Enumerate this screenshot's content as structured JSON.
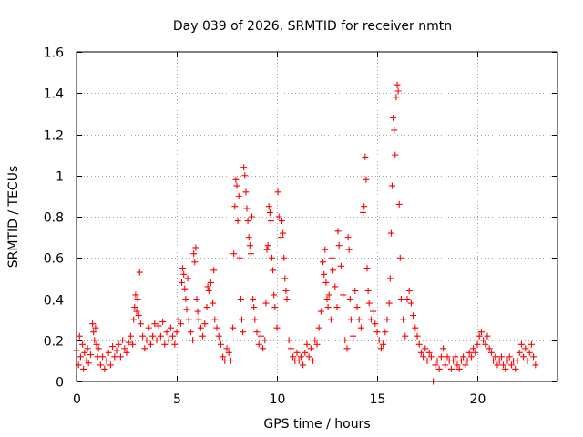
{
  "chart_data": {
    "type": "scatter",
    "title": "Day 039 of 2026, SRMTID for receiver nmtn",
    "xlabel": "GPS time / hours",
    "ylabel": "SRMTID / TECUs",
    "xlim": [
      0,
      24
    ],
    "ylim": [
      0,
      1.6
    ],
    "xticks": [
      0,
      5,
      10,
      15,
      20
    ],
    "xtick_labels": [
      "0",
      "5",
      "10",
      "15",
      "20"
    ],
    "yticks": [
      0,
      0.2,
      0.4,
      0.6,
      0.8,
      1.0,
      1.2,
      1.4,
      1.6
    ],
    "ytick_labels": [
      "0",
      "0.2",
      "0.4",
      "0.6",
      "0.8",
      "1",
      "1.2",
      "1.4",
      "1.6"
    ],
    "grid": true,
    "marker": "plus",
    "color": "#ff0000",
    "series": [
      {
        "name": "SRMTID",
        "points": [
          [
            0.0,
            0.15
          ],
          [
            0.1,
            0.08
          ],
          [
            0.15,
            0.22
          ],
          [
            0.2,
            0.12
          ],
          [
            0.3,
            0.18
          ],
          [
            0.35,
            0.06
          ],
          [
            0.4,
            0.14
          ],
          [
            0.5,
            0.1
          ],
          [
            0.55,
            0.16
          ],
          [
            0.6,
            0.09
          ],
          [
            0.7,
            0.13
          ],
          [
            0.8,
            0.28
          ],
          [
            0.85,
            0.24
          ],
          [
            0.9,
            0.2
          ],
          [
            0.95,
            0.26
          ],
          [
            1.0,
            0.18
          ],
          [
            1.05,
            0.12
          ],
          [
            1.1,
            0.16
          ],
          [
            1.2,
            0.08
          ],
          [
            1.3,
            0.12
          ],
          [
            1.4,
            0.06
          ],
          [
            1.5,
            0.1
          ],
          [
            1.6,
            0.14
          ],
          [
            1.7,
            0.08
          ],
          [
            1.8,
            0.17
          ],
          [
            1.9,
            0.12
          ],
          [
            2.0,
            0.15
          ],
          [
            2.1,
            0.18
          ],
          [
            2.2,
            0.12
          ],
          [
            2.3,
            0.2
          ],
          [
            2.4,
            0.16
          ],
          [
            2.5,
            0.14
          ],
          [
            2.6,
            0.19
          ],
          [
            2.7,
            0.22
          ],
          [
            2.8,
            0.18
          ],
          [
            2.85,
            0.3
          ],
          [
            2.9,
            0.36
          ],
          [
            2.95,
            0.42
          ],
          [
            3.0,
            0.34
          ],
          [
            3.05,
            0.4
          ],
          [
            3.1,
            0.32
          ],
          [
            3.15,
            0.53
          ],
          [
            3.2,
            0.28
          ],
          [
            3.3,
            0.22
          ],
          [
            3.4,
            0.16
          ],
          [
            3.5,
            0.2
          ],
          [
            3.6,
            0.26
          ],
          [
            3.7,
            0.18
          ],
          [
            3.8,
            0.22
          ],
          [
            3.9,
            0.28
          ],
          [
            4.0,
            0.2
          ],
          [
            4.1,
            0.27
          ],
          [
            4.2,
            0.22
          ],
          [
            4.3,
            0.29
          ],
          [
            4.4,
            0.18
          ],
          [
            4.5,
            0.24
          ],
          [
            4.6,
            0.2
          ],
          [
            4.7,
            0.26
          ],
          [
            4.8,
            0.22
          ],
          [
            4.9,
            0.18
          ],
          [
            5.0,
            0.24
          ],
          [
            5.1,
            0.3
          ],
          [
            5.2,
            0.28
          ],
          [
            5.25,
            0.48
          ],
          [
            5.3,
            0.55
          ],
          [
            5.35,
            0.52
          ],
          [
            5.4,
            0.45
          ],
          [
            5.45,
            0.4
          ],
          [
            5.5,
            0.35
          ],
          [
            5.55,
            0.5
          ],
          [
            5.6,
            0.3
          ],
          [
            5.7,
            0.24
          ],
          [
            5.8,
            0.2
          ],
          [
            5.85,
            0.62
          ],
          [
            5.9,
            0.58
          ],
          [
            5.95,
            0.65
          ],
          [
            6.0,
            0.4
          ],
          [
            6.05,
            0.34
          ],
          [
            6.1,
            0.3
          ],
          [
            6.2,
            0.26
          ],
          [
            6.3,
            0.22
          ],
          [
            6.4,
            0.28
          ],
          [
            6.5,
            0.36
          ],
          [
            6.55,
            0.46
          ],
          [
            6.6,
            0.44
          ],
          [
            6.7,
            0.48
          ],
          [
            6.8,
            0.38
          ],
          [
            6.85,
            0.54
          ],
          [
            6.9,
            0.3
          ],
          [
            7.0,
            0.26
          ],
          [
            7.1,
            0.22
          ],
          [
            7.2,
            0.18
          ],
          [
            7.3,
            0.12
          ],
          [
            7.4,
            0.1
          ],
          [
            7.5,
            0.16
          ],
          [
            7.6,
            0.14
          ],
          [
            7.7,
            0.1
          ],
          [
            7.8,
            0.26
          ],
          [
            7.85,
            0.62
          ],
          [
            7.9,
            0.85
          ],
          [
            7.95,
            0.98
          ],
          [
            8.0,
            0.95
          ],
          [
            8.05,
            0.78
          ],
          [
            8.1,
            0.9
          ],
          [
            8.15,
            0.6
          ],
          [
            8.2,
            0.4
          ],
          [
            8.25,
            0.3
          ],
          [
            8.3,
            0.24
          ],
          [
            8.35,
            1.04
          ],
          [
            8.4,
            1.0
          ],
          [
            8.45,
            0.92
          ],
          [
            8.5,
            0.84
          ],
          [
            8.55,
            0.78
          ],
          [
            8.6,
            0.7
          ],
          [
            8.65,
            0.66
          ],
          [
            8.7,
            0.62
          ],
          [
            8.75,
            0.8
          ],
          [
            8.8,
            0.4
          ],
          [
            8.85,
            0.36
          ],
          [
            8.9,
            0.3
          ],
          [
            9.0,
            0.24
          ],
          [
            9.1,
            0.18
          ],
          [
            9.2,
            0.22
          ],
          [
            9.3,
            0.16
          ],
          [
            9.4,
            0.2
          ],
          [
            9.45,
            0.38
          ],
          [
            9.5,
            0.64
          ],
          [
            9.55,
            0.66
          ],
          [
            9.6,
            0.85
          ],
          [
            9.65,
            0.82
          ],
          [
            9.7,
            0.78
          ],
          [
            9.75,
            0.6
          ],
          [
            9.8,
            0.54
          ],
          [
            9.85,
            0.42
          ],
          [
            9.9,
            0.36
          ],
          [
            10.0,
            0.26
          ],
          [
            10.05,
            0.92
          ],
          [
            10.1,
            0.8
          ],
          [
            10.2,
            0.7
          ],
          [
            10.25,
            0.78
          ],
          [
            10.3,
            0.72
          ],
          [
            10.35,
            0.6
          ],
          [
            10.4,
            0.5
          ],
          [
            10.45,
            0.44
          ],
          [
            10.5,
            0.4
          ],
          [
            10.6,
            0.2
          ],
          [
            10.7,
            0.16
          ],
          [
            10.8,
            0.12
          ],
          [
            10.9,
            0.1
          ],
          [
            11.0,
            0.14
          ],
          [
            11.1,
            0.1
          ],
          [
            11.2,
            0.12
          ],
          [
            11.3,
            0.08
          ],
          [
            11.4,
            0.14
          ],
          [
            11.5,
            0.18
          ],
          [
            11.6,
            0.12
          ],
          [
            11.7,
            0.16
          ],
          [
            11.8,
            0.1
          ],
          [
            11.9,
            0.2
          ],
          [
            12.0,
            0.18
          ],
          [
            12.1,
            0.26
          ],
          [
            12.2,
            0.34
          ],
          [
            12.3,
            0.58
          ],
          [
            12.35,
            0.52
          ],
          [
            12.4,
            0.64
          ],
          [
            12.45,
            0.48
          ],
          [
            12.5,
            0.4
          ],
          [
            12.55,
            0.36
          ],
          [
            12.6,
            0.42
          ],
          [
            12.7,
            0.3
          ],
          [
            12.75,
            0.6
          ],
          [
            12.8,
            0.54
          ],
          [
            12.9,
            0.46
          ],
          [
            13.0,
            0.36
          ],
          [
            13.05,
            0.73
          ],
          [
            13.1,
            0.66
          ],
          [
            13.2,
            0.56
          ],
          [
            13.3,
            0.42
          ],
          [
            13.4,
            0.2
          ],
          [
            13.5,
            0.16
          ],
          [
            13.55,
            0.7
          ],
          [
            13.6,
            0.64
          ],
          [
            13.65,
            0.4
          ],
          [
            13.7,
            0.3
          ],
          [
            13.8,
            0.22
          ],
          [
            13.9,
            0.44
          ],
          [
            14.0,
            0.36
          ],
          [
            14.1,
            0.3
          ],
          [
            14.2,
            0.26
          ],
          [
            14.3,
            0.82
          ],
          [
            14.35,
            0.85
          ],
          [
            14.4,
            1.09
          ],
          [
            14.45,
            0.98
          ],
          [
            14.5,
            0.55
          ],
          [
            14.55,
            0.44
          ],
          [
            14.6,
            0.38
          ],
          [
            14.7,
            0.3
          ],
          [
            14.8,
            0.34
          ],
          [
            14.9,
            0.28
          ],
          [
            15.0,
            0.24
          ],
          [
            15.1,
            0.2
          ],
          [
            15.2,
            0.16
          ],
          [
            15.3,
            0.18
          ],
          [
            15.4,
            0.24
          ],
          [
            15.5,
            0.3
          ],
          [
            15.6,
            0.38
          ],
          [
            15.65,
            0.5
          ],
          [
            15.7,
            0.72
          ],
          [
            15.75,
            0.95
          ],
          [
            15.8,
            1.28
          ],
          [
            15.85,
            1.22
          ],
          [
            15.9,
            1.1
          ],
          [
            15.95,
            1.38
          ],
          [
            16.0,
            1.44
          ],
          [
            16.05,
            1.41
          ],
          [
            16.1,
            0.86
          ],
          [
            16.15,
            0.6
          ],
          [
            16.2,
            0.4
          ],
          [
            16.3,
            0.3
          ],
          [
            16.4,
            0.22
          ],
          [
            16.5,
            0.4
          ],
          [
            16.6,
            0.44
          ],
          [
            16.7,
            0.38
          ],
          [
            16.8,
            0.32
          ],
          [
            16.9,
            0.26
          ],
          [
            17.0,
            0.22
          ],
          [
            17.1,
            0.18
          ],
          [
            17.2,
            0.14
          ],
          [
            17.3,
            0.12
          ],
          [
            17.4,
            0.16
          ],
          [
            17.5,
            0.1
          ],
          [
            17.6,
            0.14
          ],
          [
            17.7,
            0.12
          ],
          [
            17.8,
            0.0
          ],
          [
            17.9,
            0.08
          ],
          [
            18.0,
            0.1
          ],
          [
            18.1,
            0.06
          ],
          [
            18.2,
            0.12
          ],
          [
            18.3,
            0.16
          ],
          [
            18.4,
            0.08
          ],
          [
            18.5,
            0.12
          ],
          [
            18.6,
            0.1
          ],
          [
            18.7,
            0.06
          ],
          [
            18.8,
            0.1
          ],
          [
            18.9,
            0.12
          ],
          [
            19.0,
            0.08
          ],
          [
            19.1,
            0.06
          ],
          [
            19.2,
            0.1
          ],
          [
            19.3,
            0.12
          ],
          [
            19.4,
            0.08
          ],
          [
            19.5,
            0.1
          ],
          [
            19.6,
            0.14
          ],
          [
            19.7,
            0.12
          ],
          [
            19.8,
            0.16
          ],
          [
            19.9,
            0.14
          ],
          [
            20.0,
            0.18
          ],
          [
            20.1,
            0.22
          ],
          [
            20.2,
            0.24
          ],
          [
            20.3,
            0.2
          ],
          [
            20.4,
            0.18
          ],
          [
            20.5,
            0.22
          ],
          [
            20.6,
            0.16
          ],
          [
            20.7,
            0.14
          ],
          [
            20.8,
            0.1
          ],
          [
            20.9,
            0.12
          ],
          [
            21.0,
            0.08
          ],
          [
            21.1,
            0.1
          ],
          [
            21.2,
            0.12
          ],
          [
            21.3,
            0.08
          ],
          [
            21.4,
            0.06
          ],
          [
            21.5,
            0.1
          ],
          [
            21.6,
            0.12
          ],
          [
            21.7,
            0.08
          ],
          [
            21.8,
            0.1
          ],
          [
            21.9,
            0.06
          ],
          [
            22.0,
            0.1
          ],
          [
            22.1,
            0.14
          ],
          [
            22.2,
            0.18
          ],
          [
            22.3,
            0.12
          ],
          [
            22.4,
            0.16
          ],
          [
            22.5,
            0.1
          ],
          [
            22.6,
            0.14
          ],
          [
            22.7,
            0.18
          ],
          [
            22.8,
            0.12
          ],
          [
            22.9,
            0.08
          ]
        ]
      }
    ]
  }
}
